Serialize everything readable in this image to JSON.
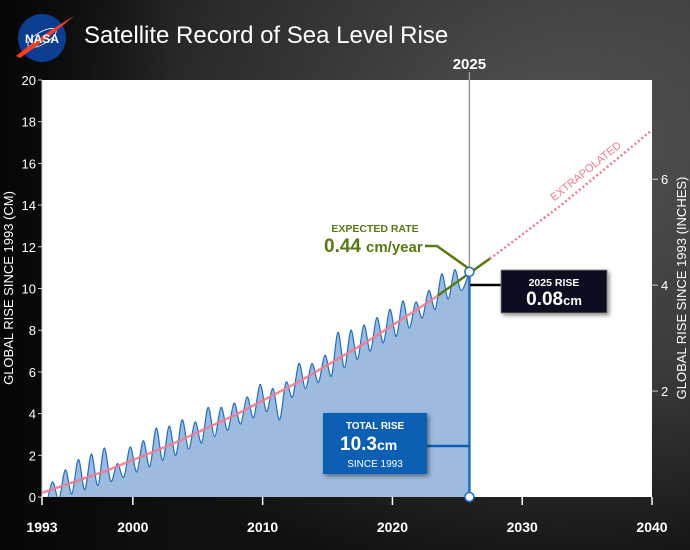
{
  "header": {
    "logo_text": "NASA",
    "title": "Satellite Record of Sea Level Rise"
  },
  "colors": {
    "fill": "#9dbadf",
    "line": "#1f6fc1",
    "trend": "#f27b90",
    "rate": "#587a12",
    "total_box": "#0a5fb4",
    "rise_box": "#0b0f22",
    "plot_bg": "#ffffff"
  },
  "chart_data": {
    "type": "area",
    "title": "Satellite Record of Sea Level Rise",
    "xlabel": "",
    "ylabel": "GLOBAL RISE SINCE 1993 (CM)",
    "ylabel_right": "GLOBAL RISE SINCE 1993 (INCHES)",
    "xlim": [
      1993,
      2040
    ],
    "ylim": [
      0,
      20
    ],
    "x_ticks": [
      1993,
      2000,
      2010,
      2020,
      2030,
      2040
    ],
    "y_ticks": [
      0,
      2,
      4,
      6,
      8,
      10,
      12,
      14,
      16,
      18,
      20
    ],
    "y_right_ticks": [
      2,
      4,
      6
    ],
    "grid": false,
    "marker_year_label": "2025",
    "series": [
      {
        "x": [
          1993.0,
          1993.3,
          1993.8,
          1994.3,
          1994.8,
          1995.3,
          1995.8,
          1996.3,
          1996.8,
          1997.3,
          1997.8,
          1998.3,
          1998.8,
          1999.3,
          1999.8,
          2000.3,
          2000.8,
          2001.3,
          2001.8,
          2002.3,
          2002.8,
          2003.3,
          2003.8,
          2004.3,
          2004.8,
          2005.3,
          2005.8,
          2006.3,
          2006.8,
          2007.3,
          2007.8,
          2008.3,
          2008.8,
          2009.3,
          2009.8,
          2010.3,
          2010.8,
          2011.3,
          2011.8,
          2012.3,
          2012.8,
          2013.3,
          2013.8,
          2014.3,
          2014.8,
          2015.3,
          2015.8,
          2016.3,
          2016.8,
          2017.3,
          2017.8,
          2018.3,
          2018.8,
          2019.3,
          2019.8,
          2020.3,
          2020.8,
          2021.3,
          2021.8,
          2022.3,
          2022.8,
          2023.3,
          2023.8,
          2024.3,
          2024.8,
          2025.3,
          2025.93
        ],
        "y": [
          0.0,
          -0.4,
          0.72,
          -0.1,
          1.3,
          0.15,
          1.8,
          0.35,
          2.06,
          0.55,
          2.35,
          0.75,
          1.6,
          0.95,
          2.4,
          1.2,
          2.7,
          1.45,
          3.3,
          1.75,
          3.4,
          2.0,
          3.7,
          2.3,
          3.6,
          2.6,
          4.3,
          2.9,
          4.3,
          3.2,
          4.5,
          3.5,
          4.8,
          3.8,
          5.4,
          4.1,
          5.2,
          3.7,
          5.5,
          4.8,
          6.4,
          5.2,
          6.4,
          5.5,
          6.8,
          5.8,
          7.9,
          6.2,
          8.0,
          6.6,
          8.25,
          7.0,
          8.6,
          7.4,
          9.0,
          7.7,
          9.4,
          8.1,
          9.35,
          8.6,
          9.9,
          9.0,
          10.7,
          9.5,
          10.9,
          9.9,
          10.8
        ]
      }
    ],
    "trend": {
      "x": [
        1993,
        1998,
        2003,
        2008,
        2013,
        2018,
        2023,
        2028,
        2033,
        2040
      ],
      "y": [
        0.2,
        1.27,
        2.53,
        3.97,
        5.6,
        7.43,
        9.44,
        11.65,
        14.0,
        17.6
      ],
      "observed_until": 2023.7,
      "extrapolated_from": 2027.5,
      "extrapolated_label": "EXTRAPOLATED"
    },
    "annotations": {
      "expected_rate": {
        "label": "EXPECTED RATE",
        "value": "0.44",
        "unit": "cm/year"
      },
      "year_rise": {
        "label": "2025 RISE",
        "value": "0.08",
        "unit": "cm"
      },
      "total_rise": {
        "label": "TOTAL RISE",
        "value": "10.3",
        "unit": "cm",
        "sub": "SINCE 1993"
      }
    }
  }
}
